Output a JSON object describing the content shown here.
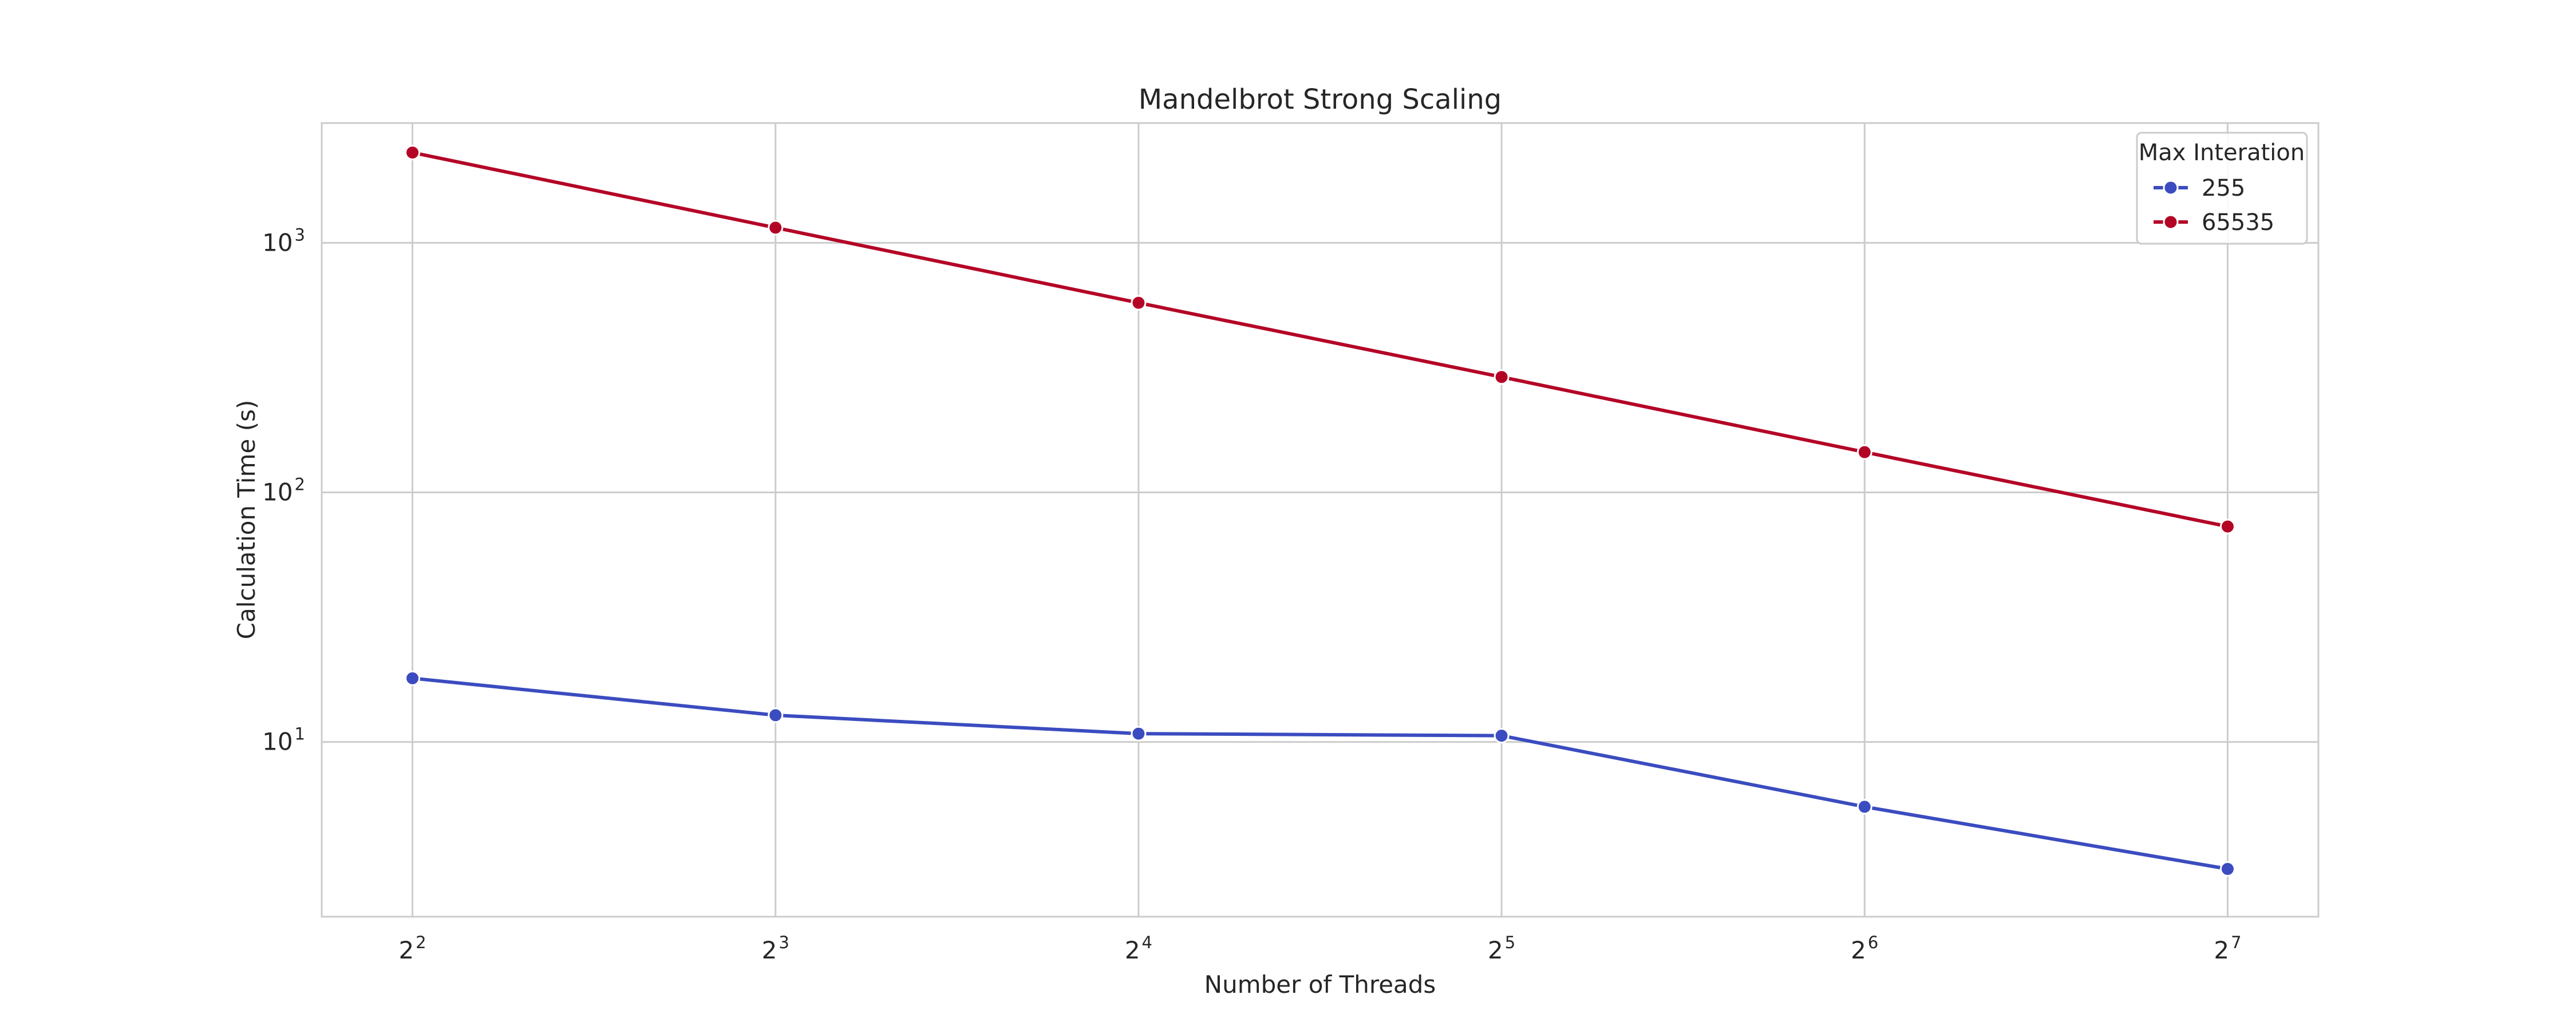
{
  "chart_data": {
    "type": "line",
    "title": "Mandelbrot Strong Scaling",
    "xlabel": "Number of Threads",
    "ylabel": "Calculation Time (s)",
    "x_scale": "log2",
    "y_scale": "log10",
    "x": [
      4,
      8,
      16,
      32,
      64,
      128
    ],
    "x_ticks": [
      {
        "base": "2",
        "exp": "2"
      },
      {
        "base": "2",
        "exp": "3"
      },
      {
        "base": "2",
        "exp": "4"
      },
      {
        "base": "2",
        "exp": "5"
      },
      {
        "base": "2",
        "exp": "6"
      },
      {
        "base": "2",
        "exp": "7"
      }
    ],
    "y_ticks": [
      {
        "value": 10,
        "base": "10",
        "exp": "1"
      },
      {
        "value": 100,
        "base": "10",
        "exp": "2"
      },
      {
        "value": 1000,
        "base": "10",
        "exp": "3"
      }
    ],
    "xlim_exp2": [
      1.75,
      7.25
    ],
    "ylim_log10": [
      0.3,
      3.48
    ],
    "grid": true,
    "legend": {
      "title": "Max Interation",
      "placement": "top-right"
    },
    "series": [
      {
        "name": "255",
        "color": "#3b4cc0",
        "values": [
          18.0,
          12.8,
          10.8,
          10.6,
          5.5,
          3.1
        ]
      },
      {
        "name": "65535",
        "color": "#b40426",
        "values": [
          2300,
          1150,
          575,
          290,
          145,
          73
        ]
      }
    ]
  }
}
